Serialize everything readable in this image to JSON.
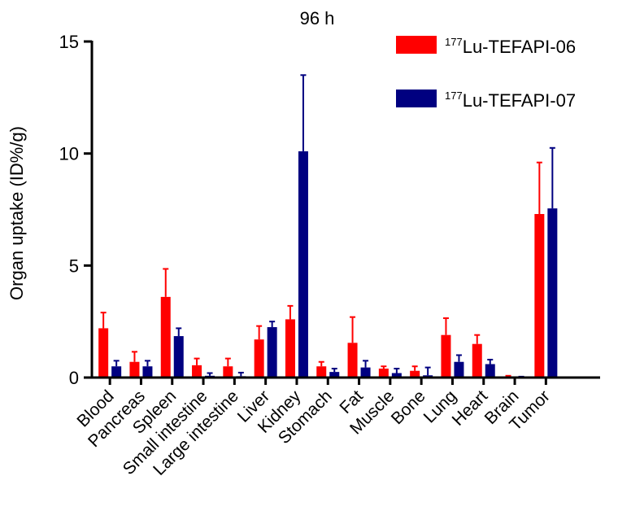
{
  "chart_data": {
    "type": "bar",
    "title": "96 h",
    "xlabel": "",
    "ylabel": "Organ uptake (ID%/g)",
    "ylim": [
      0,
      15
    ],
    "yticks": [
      0,
      5,
      10,
      15
    ],
    "grid": false,
    "legend_position": "top-right",
    "categories": [
      "Blood",
      "Pancreas",
      "Spleen",
      "Small intestine",
      "Large intestine",
      "Liver",
      "Kidney",
      "Stomach",
      "Fat",
      "Muscle",
      "Bone",
      "Lung",
      "Heart",
      "Brain",
      "Tumor"
    ],
    "series": [
      {
        "name_sup": "177",
        "name": "Lu-TEFAPI-06",
        "color": "#ff0000",
        "values": [
          2.2,
          0.7,
          3.6,
          0.55,
          0.5,
          1.7,
          2.6,
          0.5,
          1.55,
          0.4,
          0.3,
          1.9,
          1.5,
          0.05,
          7.3
        ],
        "errors": [
          0.7,
          0.45,
          1.25,
          0.3,
          0.35,
          0.6,
          0.6,
          0.2,
          1.15,
          0.1,
          0.2,
          0.75,
          0.4,
          0.03,
          2.3
        ]
      },
      {
        "name_sup": "177",
        "name": "Lu-TEFAPI-07",
        "color": "#000080",
        "values": [
          0.5,
          0.5,
          1.85,
          0.08,
          0.06,
          2.25,
          10.1,
          0.25,
          0.45,
          0.2,
          0.1,
          0.7,
          0.6,
          0.02,
          7.55
        ],
        "errors": [
          0.25,
          0.25,
          0.35,
          0.12,
          0.16,
          0.25,
          3.4,
          0.15,
          0.3,
          0.2,
          0.35,
          0.3,
          0.2,
          0.02,
          2.7
        ]
      }
    ]
  }
}
